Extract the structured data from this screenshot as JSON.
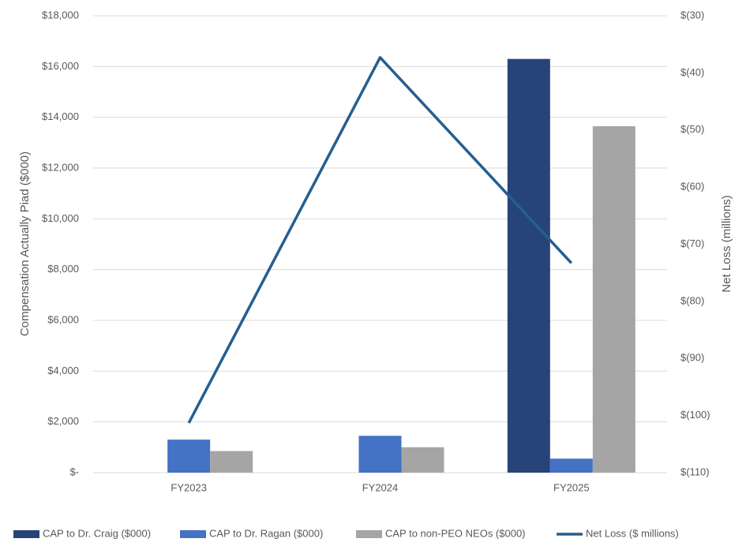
{
  "chart_data": {
    "type": "bar",
    "y_label": "Compensation Actually Piad ($000)",
    "y2_label": "Net Loss (millions)",
    "categories": [
      "FY2023",
      "FY2024",
      "FY2025"
    ],
    "series": [
      {
        "name": "CAP to Dr. Craig ($000)",
        "color": "#264478",
        "values": [
          null,
          null,
          16300
        ]
      },
      {
        "name": "CAP to Dr. Ragan ($000)",
        "color": "#4472c4",
        "values": [
          1300,
          1450,
          550
        ]
      },
      {
        "name": "CAP to non-PEO NEOs ($000)",
        "color": "#a5a5a5",
        "values": [
          850,
          1000,
          13650
        ]
      },
      {
        "name": "Net Loss ($ millions)",
        "color": "#255e91",
        "type": "line",
        "axis": "y2",
        "values": [
          -101.3,
          -37.3,
          -73.3
        ]
      }
    ],
    "ylim": [
      0,
      18000
    ],
    "yticks": [
      {
        "value": 0,
        "label": "$-"
      },
      {
        "value": 2000,
        "label": "$2,000"
      },
      {
        "value": 4000,
        "label": "$4,000"
      },
      {
        "value": 6000,
        "label": "$6,000"
      },
      {
        "value": 8000,
        "label": "$8,000"
      },
      {
        "value": 10000,
        "label": "$10,000"
      },
      {
        "value": 12000,
        "label": "$12,000"
      },
      {
        "value": 14000,
        "label": "$14,000"
      },
      {
        "value": 16000,
        "label": "$16,000"
      },
      {
        "value": 18000,
        "label": "$18,000"
      }
    ],
    "y2lim": [
      -110,
      -30
    ],
    "y2ticks": [
      {
        "value": -110,
        "label": "$(110)"
      },
      {
        "value": -100,
        "label": "$(100)"
      },
      {
        "value": -90,
        "label": "$(90)"
      },
      {
        "value": -80,
        "label": "$(80)"
      },
      {
        "value": -70,
        "label": "$(70)"
      },
      {
        "value": -60,
        "label": "$(60)"
      },
      {
        "value": -50,
        "label": "$(50)"
      },
      {
        "value": -40,
        "label": "$(40)"
      },
      {
        "value": -30,
        "label": "$(30)"
      }
    ],
    "grid": true,
    "legend": "bottom"
  }
}
